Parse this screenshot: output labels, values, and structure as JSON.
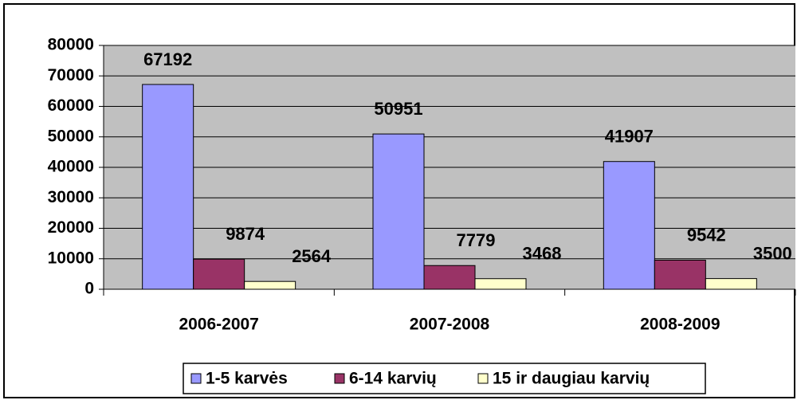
{
  "chart_data": {
    "type": "bar",
    "categories": [
      "2006-2007",
      "2007-2008",
      "2008-2009"
    ],
    "series": [
      {
        "name": "1-5 karvės",
        "color": "#9999ff",
        "values": [
          67192,
          50951,
          41907
        ]
      },
      {
        "name": "6-14 karvių",
        "color": "#993366",
        "values": [
          9874,
          7779,
          9542
        ]
      },
      {
        "name": "15 ir daugiau karvių",
        "color": "#ffffcc",
        "values": [
          2564,
          3468,
          3500
        ]
      }
    ],
    "ylim": [
      0,
      80000
    ],
    "yticks": [
      0,
      10000,
      20000,
      30000,
      40000,
      50000,
      60000,
      70000,
      80000
    ],
    "grid": true,
    "legend": "bottom",
    "background": "#c0c0c0"
  }
}
